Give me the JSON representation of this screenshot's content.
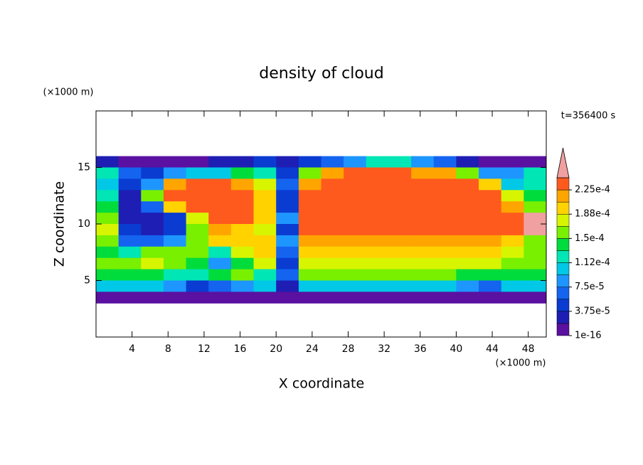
{
  "chart_data": {
    "type": "contour",
    "title": "density of cloud",
    "xlabel": "X coordinate",
    "ylabel": "Z coordinate",
    "xunit": "(×1000 m)",
    "yunit": "(×1000 m)",
    "annotation": "t=356400 s",
    "xlim": [
      0,
      50
    ],
    "ylim": [
      0,
      20
    ],
    "xticks": [
      4,
      8,
      12,
      16,
      20,
      24,
      28,
      32,
      36,
      40,
      44,
      48
    ],
    "yticks": [
      5,
      10,
      15
    ],
    "x": [
      1.25,
      3.75,
      6.25,
      8.75,
      11.25,
      13.75,
      16.25,
      18.75,
      21.25,
      23.75,
      26.25,
      28.75,
      31.25,
      33.75,
      36.25,
      38.75,
      41.25,
      43.75,
      46.25,
      48.75
    ],
    "z": [
      15.5,
      14.5,
      13.5,
      12.5,
      11.5,
      10.5,
      9.5,
      8.5,
      7.5,
      6.5,
      5.5,
      4.5,
      3.5
    ],
    "values": [
      [
        2e-05,
        1e-05,
        1e-05,
        1e-05,
        1e-05,
        2e-05,
        3e-05,
        5e-05,
        2e-05,
        4e-05,
        6e-05,
        9e-05,
        0.00012,
        0.00012,
        9e-05,
        6e-05,
        3e-05,
        1e-05,
        1e-05,
        1e-05
      ],
      [
        0.00013,
        6e-05,
        5e-05,
        9e-05,
        0.0001,
        0.00011,
        0.00014,
        0.00012,
        5e-05,
        0.00015,
        0.00021,
        0.00023,
        0.00023,
        0.00023,
        0.00022,
        0.00021,
        0.00016,
        9e-05,
        8e-05,
        0.00012
      ],
      [
        0.00011,
        5e-05,
        9e-05,
        0.00021,
        0.00023,
        0.00023,
        0.00022,
        0.00018,
        6e-05,
        0.00022,
        0.00023,
        0.000235,
        0.000235,
        0.000235,
        0.000235,
        0.00023,
        0.00023,
        0.00019,
        0.00011,
        0.00013
      ],
      [
        0.00012,
        3e-05,
        0.00015,
        0.00023,
        0.000235,
        0.00023,
        0.00023,
        0.0002,
        5e-05,
        0.00023,
        0.000235,
        0.000235,
        0.000235,
        0.000235,
        0.000235,
        0.000235,
        0.00023,
        0.00023,
        0.00018,
        0.00014
      ],
      [
        0.00014,
        2e-05,
        6e-05,
        0.0002,
        0.00023,
        0.00023,
        0.00023,
        0.0002,
        5e-05,
        0.00023,
        0.000235,
        0.000235,
        0.000235,
        0.000235,
        0.000235,
        0.000235,
        0.000235,
        0.00023,
        0.00022,
        0.00016
      ],
      [
        0.00016,
        3e-05,
        2e-05,
        4e-05,
        0.00018,
        0.00023,
        0.000225,
        0.0002,
        8e-05,
        0.00023,
        0.000235,
        0.000235,
        0.000235,
        0.000235,
        0.000235,
        0.000235,
        0.000235,
        0.00023,
        0.000235,
        0.00025
      ],
      [
        0.00018,
        5e-05,
        3e-05,
        4e-05,
        0.00015,
        0.00021,
        0.0002,
        0.00018,
        4e-05,
        0.000225,
        0.00023,
        0.00023,
        0.00023,
        0.00023,
        0.00023,
        0.00023,
        0.00023,
        0.000225,
        0.00023,
        0.00025
      ],
      [
        0.00015,
        6e-05,
        6e-05,
        8e-05,
        0.00016,
        0.00019,
        0.0002,
        0.0002,
        8e-05,
        0.00021,
        0.00022,
        0.00022,
        0.00022,
        0.00022,
        0.00022,
        0.00022,
        0.00022,
        0.00021,
        0.0002,
        0.00015
      ],
      [
        0.00014,
        0.00013,
        0.00015,
        0.00016,
        0.00016,
        0.00013,
        0.00018,
        0.00019,
        6e-05,
        0.00019,
        0.0002,
        0.0002,
        0.0002,
        0.0002,
        0.0002,
        0.0002,
        0.000195,
        0.00019,
        0.00017,
        0.00015
      ],
      [
        0.00016,
        0.00016,
        0.00017,
        0.00016,
        0.00014,
        8e-05,
        0.00014,
        0.00017,
        5e-05,
        0.00017,
        0.00018,
        0.00018,
        0.00018,
        0.00018,
        0.00018,
        0.00018,
        0.00017,
        0.00017,
        0.00016,
        0.00015
      ],
      [
        0.00014,
        0.00014,
        0.00014,
        0.00013,
        0.00012,
        0.00014,
        0.00015,
        0.00013,
        6e-05,
        0.00015,
        0.00015,
        0.00015,
        0.00015,
        0.00015,
        0.00015,
        0.00015,
        0.00014,
        0.00014,
        0.00014,
        0.00014
      ],
      [
        0.0001,
        0.0001,
        0.0001,
        8e-05,
        5e-05,
        7e-05,
        9e-05,
        0.0001,
        3e-05,
        0.0001,
        0.0001,
        0.0001,
        0.0001,
        0.0001,
        0.0001,
        0.0001,
        8e-05,
        6e-05,
        0.0001,
        0.0001
      ],
      [
        1e-05,
        1e-05,
        1e-05,
        1e-05,
        1e-05,
        1e-05,
        1e-05,
        1e-05,
        1e-05,
        1e-05,
        1e-05,
        1e-05,
        1e-05,
        1e-05,
        1e-05,
        1e-05,
        1e-05,
        1e-05,
        1e-05,
        1e-05
      ]
    ],
    "levels": [
      1e-16,
      1.875e-05,
      3.75e-05,
      5.625e-05,
      7.5e-05,
      9.375e-05,
      0.0001125,
      0.00013125,
      0.00015,
      0.00016875,
      0.0001875,
      0.00020625,
      0.000225,
      0.00024375
    ],
    "colors": [
      "#5a10a0",
      "#1e1eb4",
      "#0a3cd2",
      "#1464f0",
      "#1e96ff",
      "#00c8e6",
      "#00e6b4",
      "#00dc3c",
      "#78f000",
      "#d7f500",
      "#ffd200",
      "#ffa500",
      "#ff5a1e"
    ],
    "extend_color": "#f0a0a0",
    "colorbar_ticks": [
      1e-16,
      {
        "value": 3.75e-05,
        "label": "3.75e-5"
      },
      {
        "value": 7.5e-05,
        "label": "7.5e-5"
      },
      {
        "value": 0.0001125,
        "label": "1.12e-4"
      },
      {
        "value": 0.00015,
        "label": "1.5e-4"
      },
      {
        "value": 0.0001875,
        "label": "1.88e-4"
      },
      {
        "value": 0.000225,
        "label": "2.25e-4"
      }
    ]
  }
}
